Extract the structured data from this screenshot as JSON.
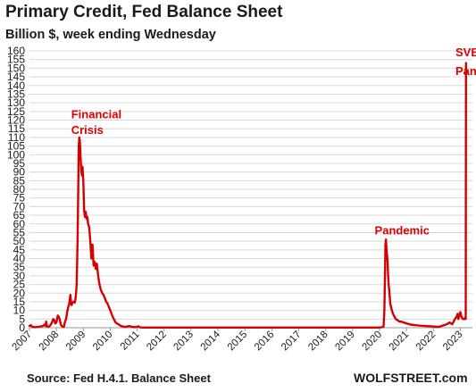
{
  "chart_data": {
    "type": "line",
    "title": "Primary Credit, Fed Balance Sheet",
    "subtitle": "Billion $, week ending Wednesday",
    "source": "Source: Fed H.4.1. Balance Sheet",
    "brand": "WOLFSTREET.com",
    "ylim": [
      0,
      160
    ],
    "yticks": [
      0,
      5,
      10,
      15,
      20,
      25,
      30,
      35,
      40,
      45,
      50,
      55,
      60,
      65,
      70,
      75,
      80,
      85,
      90,
      95,
      100,
      105,
      110,
      115,
      120,
      125,
      130,
      135,
      140,
      145,
      150,
      155,
      160
    ],
    "xlim": [
      2007.0,
      2023.45
    ],
    "xticks": [
      2007,
      2008,
      2009,
      2010,
      2011,
      2012,
      2013,
      2014,
      2015,
      2016,
      2017,
      2018,
      2019,
      2020,
      2021,
      2022,
      2023
    ],
    "grid": true,
    "line_color": "#d60000",
    "annotations": [
      {
        "text": "Financial",
        "x": 2008.55,
        "y": 121
      },
      {
        "text": "Crisis",
        "x": 2008.55,
        "y": 112
      },
      {
        "text": "Pandemic",
        "x": 2019.82,
        "y": 54
      },
      {
        "text": "SVB Bank",
        "x": 2022.82,
        "y": 157
      },
      {
        "text": "Panic",
        "x": 2022.82,
        "y": 146
      }
    ],
    "series": [
      {
        "x": [
          2007.0,
          2007.05,
          2007.1,
          2007.2,
          2007.35,
          2007.5,
          2007.58,
          2007.6,
          2007.62,
          2007.65,
          2007.7,
          2007.75,
          2007.8,
          2007.85,
          2007.88,
          2007.92,
          2007.96,
          2008.0,
          2008.03,
          2008.05,
          2008.08,
          2008.12,
          2008.16,
          2008.2,
          2008.24,
          2008.28,
          2008.32,
          2008.36,
          2008.4,
          2008.44,
          2008.48,
          2008.52,
          2008.56,
          2008.6,
          2008.64,
          2008.68,
          2008.71,
          2008.73,
          2008.75,
          2008.77,
          2008.79,
          2008.81,
          2008.83,
          2008.85,
          2008.87,
          2008.89,
          2008.91,
          2008.93,
          2008.95,
          2008.97,
          2009.0,
          2009.03,
          2009.06,
          2009.09,
          2009.12,
          2009.15,
          2009.18,
          2009.22,
          2009.26,
          2009.3,
          2009.34,
          2009.38,
          2009.42,
          2009.46,
          2009.5,
          2009.55,
          2009.6,
          2009.65,
          2009.7,
          2009.75,
          2009.8,
          2009.85,
          2009.9,
          2009.95,
          2010.0,
          2010.05,
          2010.1,
          2010.15,
          2010.2,
          2010.25,
          2010.3,
          2010.35,
          2010.4,
          2010.45,
          2010.5,
          2010.55,
          2010.6,
          2010.65,
          2010.7,
          2010.8,
          2010.9,
          2011.0,
          2011.05,
          2011.1,
          2011.2,
          2012.0,
          2013.0,
          2014.0,
          2015.0,
          2016.0,
          2017.0,
          2018.0,
          2019.0,
          2020.0,
          2020.15,
          2020.18,
          2020.2,
          2020.22,
          2020.24,
          2020.26,
          2020.28,
          2020.3,
          2020.32,
          2020.34,
          2020.36,
          2020.38,
          2020.4,
          2020.43,
          2020.46,
          2020.5,
          2020.55,
          2020.6,
          2020.65,
          2020.7,
          2020.75,
          2020.8,
          2020.9,
          2021.0,
          2021.15,
          2021.3,
          2021.5,
          2021.7,
          2021.9,
          2022.0,
          2022.1,
          2022.2,
          2022.3,
          2022.4,
          2022.5,
          2022.6,
          2022.7,
          2022.75,
          2022.8,
          2022.85,
          2022.9,
          2022.93,
          2022.96,
          2023.0,
          2023.05,
          2023.1,
          2023.15,
          2023.17,
          2023.19,
          2023.2,
          2023.21
        ],
        "y": [
          1.0,
          1.5,
          0.5,
          0.3,
          0.5,
          1.0,
          2.0,
          1.0,
          3.5,
          0.8,
          0.5,
          1.0,
          2.0,
          3.5,
          5.0,
          4.5,
          2.5,
          3.0,
          5.5,
          7.0,
          6.5,
          5.0,
          2.0,
          1.0,
          0.5,
          0.5,
          3.5,
          5.0,
          9.0,
          12.0,
          14.0,
          19.0,
          13.0,
          14.5,
          15.0,
          14.5,
          17.0,
          20.0,
          25.0,
          38.0,
          55.0,
          80.0,
          105.0,
          110.0,
          108.0,
          101.0,
          95.0,
          90.0,
          88.0,
          93.0,
          85.0,
          68.0,
          64.0,
          67.0,
          63.0,
          64.0,
          60.0,
          58.0,
          50.0,
          40.0,
          48.0,
          36.0,
          38.0,
          34.0,
          37.0,
          30.0,
          25.0,
          22.0,
          20.0,
          19.0,
          17.0,
          15.0,
          14.0,
          12.0,
          10.0,
          8.0,
          6.0,
          4.5,
          3.0,
          2.5,
          2.0,
          1.5,
          1.0,
          0.8,
          0.6,
          0.5,
          0.5,
          0.8,
          1.0,
          0.5,
          0.3,
          0.5,
          0.8,
          0.2,
          0.1,
          0.1,
          0.1,
          0.1,
          0.1,
          0.1,
          0.1,
          0.1,
          0.1,
          0.1,
          0.5,
          10.0,
          28.0,
          48.0,
          51.0,
          45.0,
          42.0,
          38.0,
          30.0,
          25.0,
          22.0,
          18.0,
          14.0,
          12.0,
          10.0,
          8.0,
          6.5,
          5.0,
          4.5,
          4.0,
          3.5,
          3.5,
          3.0,
          2.5,
          1.8,
          1.5,
          1.2,
          1.0,
          0.8,
          0.7,
          0.5,
          0.5,
          1.0,
          1.5,
          2.0,
          3.0,
          2.0,
          3.5,
          5.0,
          6.0,
          8.0,
          5.0,
          7.0,
          9.0,
          6.0,
          5.0,
          5.0,
          5.5,
          5.0,
          5.0,
          153.0
        ]
      }
    ]
  }
}
